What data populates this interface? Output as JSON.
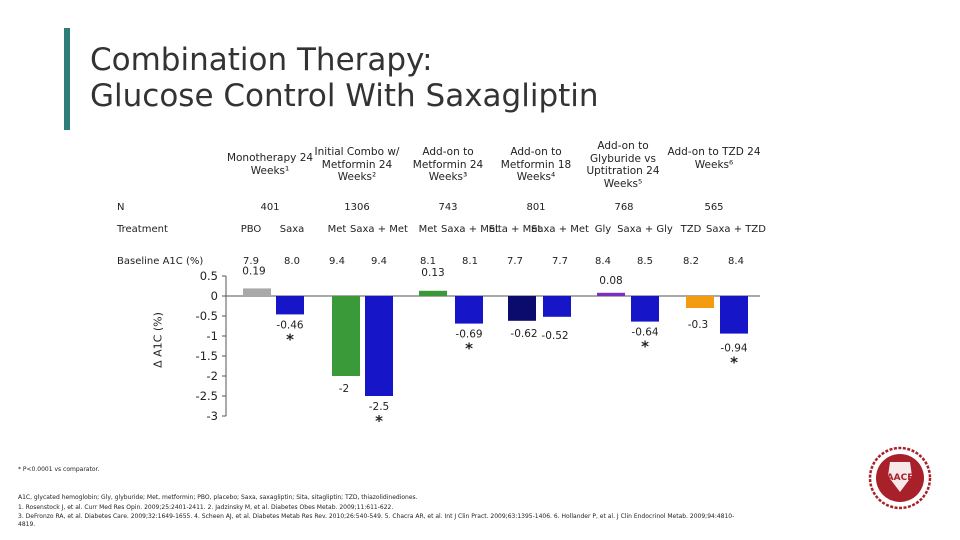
{
  "title": {
    "line1": "Combination Therapy:",
    "line2": "Glucose Control With Saxagliptin"
  },
  "colors": {
    "accent": "#2e7d78",
    "placebo": "#a9a9a9",
    "saxa": "#1616c8",
    "metformin": "#3a9a3a",
    "sitagliptin": "#0b0b6e",
    "glyburide": "#7b2fbf",
    "tzd": "#f39c12",
    "logo": "#a8202a"
  },
  "table": {
    "columns": [
      {
        "heading": "Monotherapy 24 Weeks¹",
        "n": "401",
        "treatments": [
          "PBO",
          "Saxa"
        ],
        "baseline": [
          "7.9",
          "8.0"
        ]
      },
      {
        "heading": "Initial Combo w/ Metformin 24 Weeks²",
        "n": "1306",
        "treatments": [
          "Met",
          "Saxa + Met"
        ],
        "baseline": [
          "9.4",
          "9.4"
        ]
      },
      {
        "heading": "Add-on to Metformin 24 Weeks³",
        "n": "743",
        "treatments": [
          "Met",
          "Saxa + Met"
        ],
        "baseline": [
          "8.1",
          "8.1"
        ]
      },
      {
        "heading": "Add-on to Metformin 18 Weeks⁴",
        "n": "801",
        "treatments": [
          "Sita + Met",
          "Saxa + Met"
        ],
        "baseline": [
          "7.7",
          "7.7"
        ]
      },
      {
        "heading": "Add-on to Glyburide vs Uptitration 24 Weeks⁵",
        "n": "768",
        "treatments": [
          "Gly",
          "Saxa + Gly"
        ],
        "baseline": [
          "8.4",
          "8.5"
        ]
      },
      {
        "heading": "Add-on to TZD 24 Weeks⁶",
        "n": "565",
        "treatments": [
          "TZD",
          "Saxa + TZD"
        ],
        "baseline": [
          "8.2",
          "8.4"
        ]
      }
    ],
    "row_labels": {
      "n": "N",
      "treatment": "Treatment",
      "baseline": "Baseline A1C (%)"
    }
  },
  "chart_data": {
    "type": "bar",
    "ylabel": "Δ A1C (%)",
    "ylim": [
      -3,
      0.5
    ],
    "yticks": [
      "0.5",
      "0",
      "-0.5",
      "-1",
      "-1.5",
      "-2",
      "-2.5",
      "-3"
    ],
    "categories": [
      "PBO",
      "Saxa",
      "Met",
      "Saxa + Met",
      "Met",
      "Saxa + Met",
      "Sita + Met",
      "Saxa + Met",
      "Gly",
      "Saxa + Gly",
      "TZD",
      "Saxa + TZD"
    ],
    "values": [
      0.19,
      -0.46,
      -2,
      -2.5,
      0.13,
      -0.69,
      -0.62,
      -0.52,
      0.08,
      -0.64,
      -0.3,
      -0.94
    ],
    "value_labels": [
      "0.19",
      "-0.46",
      "-2",
      "-2.5",
      "0.13",
      "-0.69",
      "-0.62",
      "-0.52",
      "0.08",
      "-0.64",
      "-0.3",
      "-0.94"
    ],
    "bar_colors": [
      "placebo",
      "saxa",
      "metformin",
      "saxa",
      "metformin",
      "saxa",
      "sitagliptin",
      "saxa",
      "glyburide",
      "saxa",
      "tzd",
      "saxa"
    ],
    "significant": [
      false,
      true,
      false,
      true,
      false,
      true,
      false,
      false,
      false,
      true,
      false,
      true
    ],
    "significance_marker": "*"
  },
  "footnotes": {
    "significance": "* P<0.0001 vs comparator.",
    "abbreviations": "A1C, glycated hemoglobin; Gly, glyburide; Met, metformin; PBO, placebo; Saxa, saxagliptin; Sita, sitagliptin; TZD, thiazolidinediones.",
    "refs1": "1. Rosenstock J, et al. Curr Med Res Opin. 2009;25:2401-2411. 2. Jadzinsky M, et al. Diabetes Obes Metab. 2009;11:611-622.",
    "refs2": "3. DeFronzo RA, et al. Diabetes Care. 2009;32:1649-1655. 4. Scheen AJ, et al. Diabetes Metab Res Rev. 2010;26:540-549. 5. Chacra AR, et al. Int J Clin Pract. 2009;63:1395-1406. 6. Hollander P, et al. J Clin Endocrinol Metab. 2009;94:4810-",
    "refs3": "4819."
  },
  "logo": {
    "text": "AACE"
  }
}
